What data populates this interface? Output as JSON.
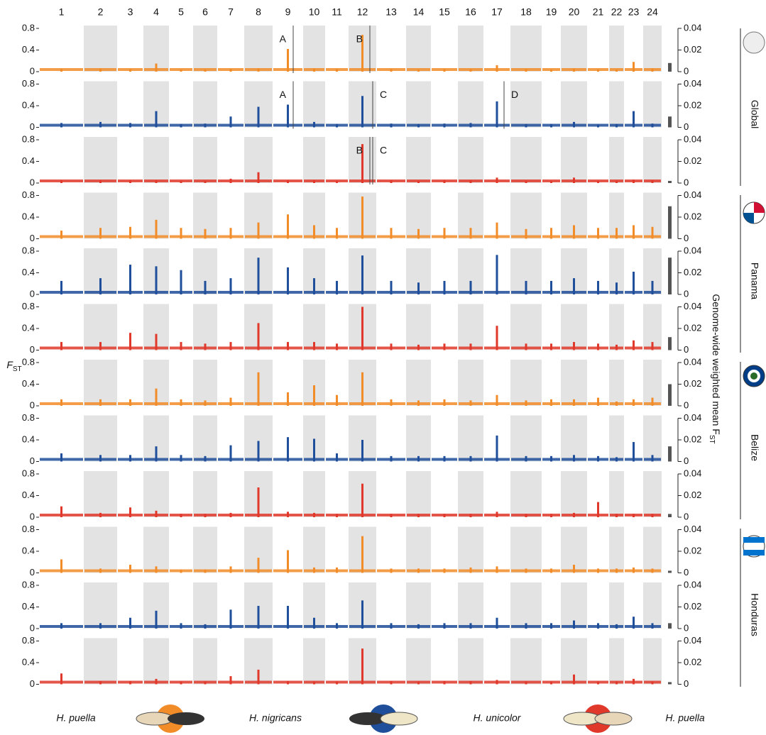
{
  "chart_data": {
    "type": "manhattan",
    "categories": [
      "1",
      "2",
      "3",
      "4",
      "5",
      "6",
      "7",
      "8",
      "9",
      "10",
      "11",
      "12",
      "13",
      "14",
      "15",
      "16",
      "17",
      "18",
      "19",
      "20",
      "21",
      "22",
      "23",
      "24"
    ],
    "ylabel": {
      "main": "F",
      "sub": "ST"
    },
    "y2label": {
      "main": "Genome-wide weighted mean F",
      "sub": "ST"
    },
    "ylim": [
      0,
      0.8
    ],
    "yticks": [
      0,
      0.4,
      0.8
    ],
    "y2lim": [
      0,
      0.04
    ],
    "y2ticks": [
      0,
      0.02,
      0.04
    ],
    "bar_color": "#555555",
    "regions": [
      "Global",
      "Panama",
      "Belize",
      "Honduras"
    ],
    "species": [
      "H. puella",
      "H. nigricans",
      "H. unicolor",
      "H. puella"
    ],
    "series": [
      {
        "color": "#f28c28",
        "mean": 0.008,
        "annotations": [
          "A",
          "B"
        ],
        "values": [
          0.05,
          0.06,
          0.05,
          0.15,
          0.04,
          0.04,
          0.05,
          0.06,
          0.42,
          0.06,
          0.05,
          0.68,
          0.05,
          0.04,
          0.05,
          0.05,
          0.12,
          0.05,
          0.04,
          0.06,
          0.04,
          0.04,
          0.18,
          0.06
        ]
      },
      {
        "color": "#1f4e9a",
        "mean": 0.01,
        "annotations": [
          "A",
          "C",
          "D"
        ],
        "values": [
          0.08,
          0.1,
          0.08,
          0.3,
          0.06,
          0.07,
          0.2,
          0.38,
          0.42,
          0.1,
          0.06,
          0.58,
          0.07,
          0.06,
          0.07,
          0.08,
          0.48,
          0.06,
          0.06,
          0.1,
          0.05,
          0.06,
          0.3,
          0.07
        ]
      },
      {
        "color": "#e0382a",
        "mean": 0.002,
        "annotations": [
          "B",
          "C"
        ],
        "values": [
          0.05,
          0.05,
          0.05,
          0.05,
          0.04,
          0.04,
          0.08,
          0.2,
          0.05,
          0.05,
          0.04,
          0.72,
          0.05,
          0.04,
          0.05,
          0.05,
          0.1,
          0.04,
          0.04,
          0.1,
          0.04,
          0.04,
          0.06,
          0.05
        ]
      },
      {
        "color": "#f28c28",
        "mean": 0.03,
        "annotations": [],
        "values": [
          0.15,
          0.2,
          0.22,
          0.35,
          0.2,
          0.18,
          0.2,
          0.3,
          0.45,
          0.25,
          0.2,
          0.78,
          0.2,
          0.18,
          0.2,
          0.2,
          0.3,
          0.18,
          0.2,
          0.25,
          0.2,
          0.2,
          0.25,
          0.22
        ]
      },
      {
        "color": "#1f4e9a",
        "mean": 0.034,
        "annotations": [],
        "values": [
          0.25,
          0.3,
          0.55,
          0.52,
          0.45,
          0.25,
          0.3,
          0.68,
          0.5,
          0.3,
          0.25,
          0.72,
          0.25,
          0.22,
          0.25,
          0.25,
          0.73,
          0.25,
          0.25,
          0.3,
          0.25,
          0.22,
          0.42,
          0.25
        ]
      },
      {
        "color": "#e0382a",
        "mean": 0.012,
        "annotations": [],
        "values": [
          0.15,
          0.15,
          0.32,
          0.3,
          0.15,
          0.12,
          0.15,
          0.5,
          0.15,
          0.15,
          0.12,
          0.8,
          0.12,
          0.1,
          0.12,
          0.12,
          0.45,
          0.12,
          0.12,
          0.15,
          0.12,
          0.1,
          0.18,
          0.15
        ]
      },
      {
        "color": "#f28c28",
        "mean": 0.02,
        "annotations": [],
        "values": [
          0.12,
          0.12,
          0.12,
          0.32,
          0.12,
          0.1,
          0.15,
          0.62,
          0.25,
          0.38,
          0.2,
          0.62,
          0.12,
          0.1,
          0.12,
          0.1,
          0.2,
          0.1,
          0.12,
          0.12,
          0.15,
          0.08,
          0.12,
          0.15
        ]
      },
      {
        "color": "#1f4e9a",
        "mean": 0.014,
        "annotations": [],
        "values": [
          0.15,
          0.12,
          0.12,
          0.28,
          0.12,
          0.1,
          0.3,
          0.38,
          0.45,
          0.42,
          0.15,
          0.4,
          0.1,
          0.1,
          0.1,
          0.1,
          0.48,
          0.1,
          0.1,
          0.12,
          0.1,
          0.08,
          0.36,
          0.12
        ]
      },
      {
        "color": "#e0382a",
        "mean": 0.003,
        "annotations": [],
        "values": [
          0.2,
          0.08,
          0.18,
          0.12,
          0.06,
          0.06,
          0.08,
          0.55,
          0.1,
          0.08,
          0.06,
          0.62,
          0.06,
          0.06,
          0.06,
          0.06,
          0.1,
          0.06,
          0.06,
          0.08,
          0.28,
          0.06,
          0.06,
          0.06
        ]
      },
      {
        "color": "#f28c28",
        "mean": 0.002,
        "annotations": [],
        "values": [
          0.25,
          0.08,
          0.15,
          0.12,
          0.06,
          0.06,
          0.12,
          0.28,
          0.42,
          0.1,
          0.1,
          0.68,
          0.08,
          0.08,
          0.08,
          0.1,
          0.12,
          0.08,
          0.08,
          0.15,
          0.08,
          0.08,
          0.1,
          0.08
        ]
      },
      {
        "color": "#1f4e9a",
        "mean": 0.005,
        "annotations": [],
        "values": [
          0.1,
          0.1,
          0.2,
          0.33,
          0.1,
          0.08,
          0.35,
          0.42,
          0.42,
          0.2,
          0.1,
          0.52,
          0.1,
          0.08,
          0.1,
          0.1,
          0.2,
          0.1,
          0.1,
          0.15,
          0.1,
          0.08,
          0.22,
          0.1
        ]
      },
      {
        "color": "#e0382a",
        "mean": 0.002,
        "annotations": [],
        "values": [
          0.2,
          0.06,
          0.06,
          0.1,
          0.05,
          0.05,
          0.15,
          0.27,
          0.06,
          0.05,
          0.05,
          0.66,
          0.06,
          0.05,
          0.06,
          0.06,
          0.08,
          0.05,
          0.05,
          0.18,
          0.05,
          0.05,
          0.1,
          0.05
        ]
      }
    ]
  }
}
